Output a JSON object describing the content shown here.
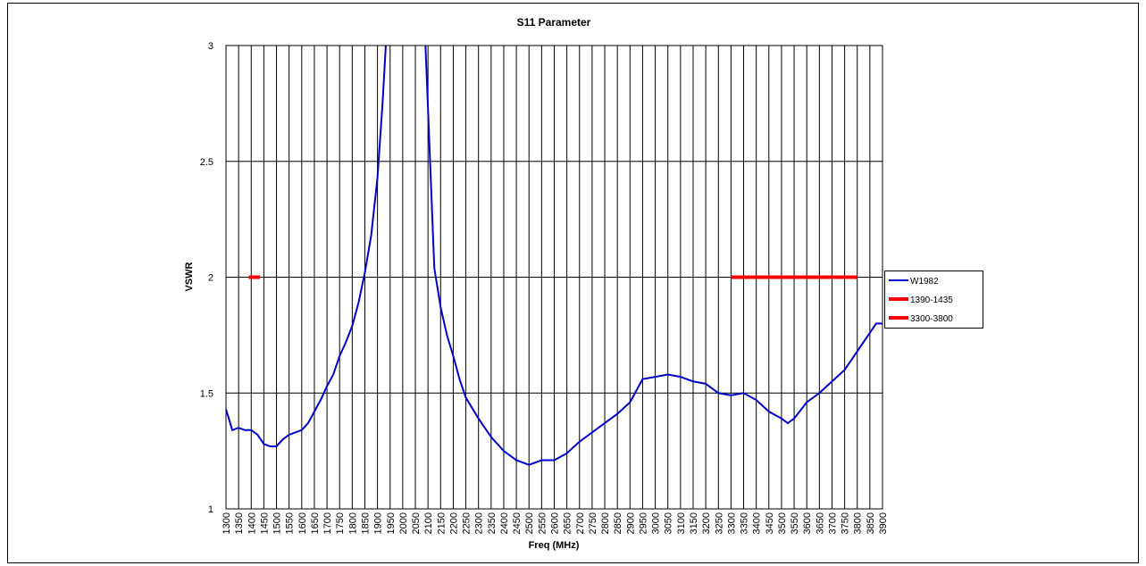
{
  "chart_data": {
    "type": "line",
    "title": "S11 Parameter",
    "x_label": "Freq (MHz)",
    "y_label": "VSWR",
    "xlim": [
      1300,
      3900
    ],
    "ylim": [
      1,
      3
    ],
    "xticks": [
      1300,
      1350,
      1400,
      1450,
      1500,
      1550,
      1600,
      1650,
      1700,
      1750,
      1800,
      1850,
      1900,
      1950,
      2000,
      2050,
      2100,
      2150,
      2200,
      2250,
      2300,
      2350,
      2400,
      2450,
      2500,
      2550,
      2600,
      2650,
      2700,
      2750,
      2800,
      2850,
      2900,
      2950,
      3000,
      3050,
      3100,
      3150,
      3200,
      3250,
      3300,
      3350,
      3400,
      3450,
      3500,
      3550,
      3600,
      3650,
      3700,
      3750,
      3800,
      3850,
      3900
    ],
    "yticks": [
      1,
      1.5,
      2,
      2.5,
      3
    ],
    "grid": true,
    "legend": "right",
    "series": [
      {
        "name": "W1982",
        "color": "#0000cc",
        "x": [
          1300,
          1325,
          1350,
          1375,
          1400,
          1425,
          1450,
          1475,
          1500,
          1525,
          1550,
          1575,
          1600,
          1625,
          1650,
          1675,
          1700,
          1725,
          1750,
          1775,
          1800,
          1825,
          1850,
          1875,
          1900,
          1920,
          1933,
          2010,
          2090,
          2100,
          2125,
          2150,
          2175,
          2200,
          2225,
          2250,
          2300,
          2350,
          2400,
          2450,
          2500,
          2550,
          2600,
          2650,
          2700,
          2750,
          2800,
          2850,
          2900,
          2950,
          3000,
          3050,
          3100,
          3150,
          3200,
          3250,
          3300,
          3350,
          3400,
          3450,
          3500,
          3525,
          3550,
          3600,
          3650,
          3700,
          3750,
          3800,
          3850,
          3875,
          3900
        ],
        "values": [
          1.43,
          1.34,
          1.35,
          1.34,
          1.34,
          1.32,
          1.28,
          1.27,
          1.27,
          1.3,
          1.32,
          1.33,
          1.34,
          1.37,
          1.42,
          1.47,
          1.53,
          1.58,
          1.66,
          1.72,
          1.79,
          1.89,
          2.02,
          2.18,
          2.43,
          2.75,
          3.0,
          null,
          3.0,
          2.73,
          2.04,
          1.87,
          1.75,
          1.66,
          1.56,
          1.48,
          1.39,
          1.31,
          1.25,
          1.21,
          1.19,
          1.21,
          1.21,
          1.24,
          1.29,
          1.33,
          1.37,
          1.41,
          1.46,
          1.56,
          1.57,
          1.58,
          1.57,
          1.55,
          1.54,
          1.5,
          1.49,
          1.5,
          1.47,
          1.42,
          1.39,
          1.37,
          1.39,
          1.46,
          1.5,
          1.55,
          1.6,
          1.68,
          1.76,
          1.8,
          1.8
        ]
      },
      {
        "name": "1390-1435",
        "color": "#ff0000",
        "x": [
          1390,
          1435
        ],
        "values": [
          2,
          2
        ]
      },
      {
        "name": "3300-3800",
        "color": "#ff0000",
        "x": [
          3300,
          3800
        ],
        "values": [
          2,
          2
        ]
      }
    ]
  }
}
